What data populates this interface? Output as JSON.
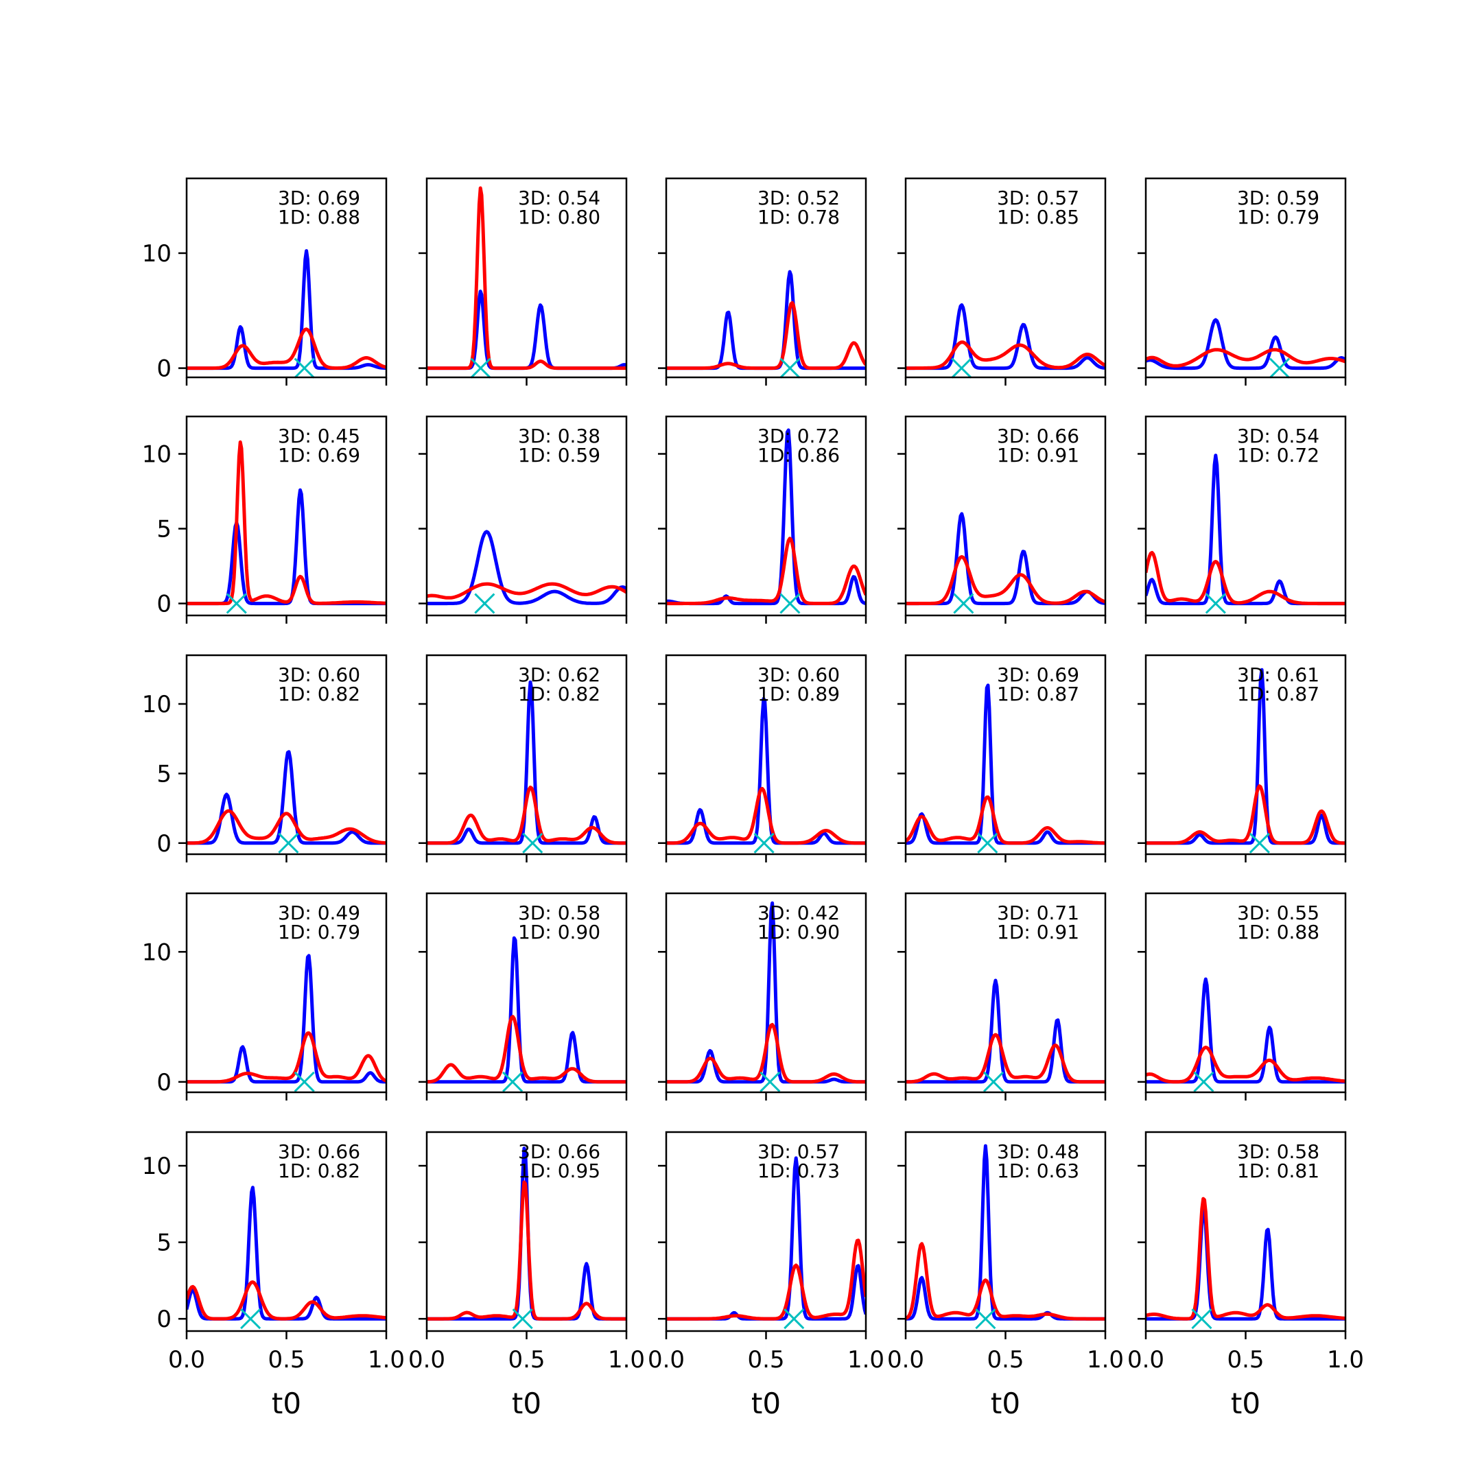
{
  "chart_data": {
    "type": "line",
    "layout": {
      "rows": 5,
      "cols": 5
    },
    "xlabel": "t0",
    "xlim": [
      0,
      1
    ],
    "xticks": [
      0.0,
      0.5,
      1.0
    ],
    "xtick_labels": [
      "0.0",
      "0.5",
      "1.0"
    ],
    "row_ylim": [
      [
        -0.8,
        16.5
      ],
      [
        -0.8,
        12.5
      ],
      [
        -0.8,
        13.5
      ],
      [
        -0.8,
        14.5
      ],
      [
        -0.8,
        12.2
      ]
    ],
    "row_yticks": [
      [
        0,
        10
      ],
      [
        0,
        5,
        10
      ],
      [
        0,
        5,
        10
      ],
      [
        0,
        10
      ],
      [
        0,
        5,
        10
      ]
    ],
    "colors": {
      "series_3d": "#0000ff",
      "series_1d": "#ff0000",
      "marker": "#00bfbf"
    },
    "series_names": [
      "3D",
      "1D"
    ],
    "panels": [
      {
        "ann": [
          "3D: 0.69",
          "1D: 0.88"
        ],
        "marker_x": 0.59,
        "blue": [
          [
            0.27,
            3.6,
            0.018
          ],
          [
            0.6,
            10.2,
            0.016
          ],
          [
            0.91,
            0.3,
            0.03
          ]
        ],
        "red": [
          [
            0.28,
            1.9,
            0.04
          ],
          [
            0.6,
            3.3,
            0.04
          ],
          [
            0.9,
            0.9,
            0.045
          ],
          [
            0.45,
            0.5,
            0.08
          ]
        ]
      },
      {
        "ann": [
          "3D: 0.54",
          "1D: 0.80"
        ],
        "marker_x": 0.27,
        "blue": [
          [
            0.27,
            6.7,
            0.016
          ],
          [
            0.57,
            5.5,
            0.02
          ],
          [
            0.99,
            0.3,
            0.02
          ]
        ],
        "red": [
          [
            0.27,
            15.7,
            0.017
          ],
          [
            0.57,
            0.6,
            0.025
          ]
        ]
      },
      {
        "ann": [
          "3D: 0.52",
          "1D: 0.78"
        ],
        "marker_x": 0.62,
        "blue": [
          [
            0.31,
            4.9,
            0.018
          ],
          [
            0.62,
            8.4,
            0.018
          ]
        ],
        "red": [
          [
            0.31,
            0.4,
            0.04
          ],
          [
            0.63,
            5.7,
            0.025
          ],
          [
            0.94,
            2.2,
            0.03
          ]
        ]
      },
      {
        "ann": [
          "3D: 0.57",
          "1D: 0.85"
        ],
        "marker_x": 0.28,
        "blue": [
          [
            0.28,
            5.5,
            0.025
          ],
          [
            0.59,
            3.8,
            0.025
          ],
          [
            0.91,
            0.9,
            0.03
          ]
        ],
        "red": [
          [
            0.28,
            2.0,
            0.045
          ],
          [
            0.58,
            1.6,
            0.06
          ],
          [
            0.91,
            1.2,
            0.05
          ],
          [
            0.45,
            0.7,
            0.12
          ]
        ]
      },
      {
        "ann": [
          "3D: 0.59",
          "1D: 0.79"
        ],
        "marker_x": 0.67,
        "blue": [
          [
            0.35,
            4.2,
            0.03
          ],
          [
            0.65,
            2.7,
            0.025
          ],
          [
            0.02,
            0.7,
            0.04
          ],
          [
            0.98,
            0.9,
            0.03
          ]
        ],
        "red": [
          [
            0.35,
            1.3,
            0.08
          ],
          [
            0.65,
            1.3,
            0.07
          ],
          [
            0.03,
            0.9,
            0.05
          ],
          [
            0.93,
            0.8,
            0.08
          ],
          [
            0.5,
            0.4,
            0.2
          ]
        ]
      },
      {
        "ann": [
          "3D: 0.45",
          "1D: 0.69"
        ],
        "marker_x": 0.25,
        "blue": [
          [
            0.25,
            5.4,
            0.02
          ],
          [
            0.57,
            7.6,
            0.018
          ]
        ],
        "red": [
          [
            0.27,
            10.8,
            0.017
          ],
          [
            0.57,
            1.8,
            0.025
          ],
          [
            0.4,
            0.5,
            0.05
          ],
          [
            0.85,
            0.1,
            0.08
          ]
        ]
      },
      {
        "ann": [
          "3D: 0.38",
          "1D: 0.59"
        ],
        "marker_x": 0.29,
        "blue": [
          [
            0.3,
            4.8,
            0.045
          ],
          [
            0.64,
            0.8,
            0.06
          ],
          [
            0.98,
            1.1,
            0.04
          ]
        ],
        "red": [
          [
            0.3,
            1.3,
            0.1
          ],
          [
            0.63,
            1.3,
            0.1
          ],
          [
            0.93,
            1.1,
            0.08
          ],
          [
            0.02,
            0.5,
            0.06
          ]
        ]
      },
      {
        "ann": [
          "3D: 0.72",
          "1D: 0.86"
        ],
        "marker_x": 0.62,
        "blue": [
          [
            0.61,
            11.7,
            0.018
          ],
          [
            0.3,
            0.5,
            0.015
          ],
          [
            0.94,
            1.8,
            0.018
          ],
          [
            0.01,
            0.15,
            0.03
          ]
        ],
        "red": [
          [
            0.62,
            4.3,
            0.028
          ],
          [
            0.94,
            2.5,
            0.035
          ],
          [
            0.3,
            0.3,
            0.05
          ],
          [
            0.45,
            0.2,
            0.1
          ]
        ]
      },
      {
        "ann": [
          "3D: 0.66",
          "1D: 0.91"
        ],
        "marker_x": 0.29,
        "blue": [
          [
            0.28,
            6.0,
            0.022
          ],
          [
            0.59,
            3.5,
            0.022
          ],
          [
            0.91,
            0.8,
            0.03
          ]
        ],
        "red": [
          [
            0.28,
            3.0,
            0.04
          ],
          [
            0.58,
            1.7,
            0.05
          ],
          [
            0.9,
            0.8,
            0.05
          ],
          [
            0.45,
            0.5,
            0.1
          ]
        ]
      },
      {
        "ann": [
          "3D: 0.54",
          "1D: 0.72"
        ],
        "marker_x": 0.35,
        "blue": [
          [
            0.35,
            9.9,
            0.017
          ],
          [
            0.03,
            1.6,
            0.02
          ],
          [
            0.67,
            1.5,
            0.02
          ]
        ],
        "red": [
          [
            0.35,
            2.8,
            0.035
          ],
          [
            0.03,
            3.4,
            0.03
          ],
          [
            0.62,
            0.8,
            0.06
          ],
          [
            0.18,
            0.3,
            0.05
          ]
        ]
      },
      {
        "ann": [
          "3D: 0.60",
          "1D: 0.82"
        ],
        "marker_x": 0.51,
        "blue": [
          [
            0.2,
            3.5,
            0.025
          ],
          [
            0.51,
            6.6,
            0.022
          ],
          [
            0.83,
            0.8,
            0.03
          ]
        ],
        "red": [
          [
            0.21,
            2.3,
            0.05
          ],
          [
            0.5,
            2.1,
            0.045
          ],
          [
            0.82,
            1.0,
            0.06
          ],
          [
            0.36,
            0.3,
            0.06
          ],
          [
            0.67,
            0.3,
            0.06
          ]
        ]
      },
      {
        "ann": [
          "3D: 0.62",
          "1D: 0.82"
        ],
        "marker_x": 0.53,
        "blue": [
          [
            0.52,
            11.6,
            0.016
          ],
          [
            0.21,
            1.0,
            0.02
          ],
          [
            0.84,
            1.9,
            0.018
          ]
        ],
        "red": [
          [
            0.52,
            4.0,
            0.028
          ],
          [
            0.22,
            2.0,
            0.035
          ],
          [
            0.83,
            1.1,
            0.04
          ],
          [
            0.37,
            0.3,
            0.05
          ],
          [
            0.68,
            0.3,
            0.06
          ]
        ]
      },
      {
        "ann": [
          "3D: 0.60",
          "1D: 0.89"
        ],
        "marker_x": 0.49,
        "blue": [
          [
            0.49,
            10.5,
            0.016
          ],
          [
            0.17,
            2.4,
            0.02
          ],
          [
            0.79,
            0.7,
            0.02
          ]
        ],
        "red": [
          [
            0.48,
            3.9,
            0.03
          ],
          [
            0.17,
            1.4,
            0.04
          ],
          [
            0.8,
            0.9,
            0.045
          ],
          [
            0.33,
            0.4,
            0.06
          ]
        ]
      },
      {
        "ann": [
          "3D: 0.69",
          "1D: 0.87"
        ],
        "marker_x": 0.41,
        "blue": [
          [
            0.41,
            11.5,
            0.015
          ],
          [
            0.08,
            2.1,
            0.02
          ],
          [
            0.71,
            0.8,
            0.02
          ]
        ],
        "red": [
          [
            0.41,
            3.3,
            0.03
          ],
          [
            0.08,
            1.9,
            0.035
          ],
          [
            0.71,
            1.1,
            0.04
          ],
          [
            0.26,
            0.4,
            0.06
          ],
          [
            0.87,
            0.1,
            0.05
          ]
        ]
      },
      {
        "ann": [
          "3D: 0.61",
          "1D: 0.87"
        ],
        "marker_x": 0.57,
        "blue": [
          [
            0.58,
            12.5,
            0.015
          ],
          [
            0.27,
            0.6,
            0.02
          ],
          [
            0.88,
            2.0,
            0.018
          ]
        ],
        "red": [
          [
            0.57,
            4.1,
            0.028
          ],
          [
            0.27,
            0.8,
            0.04
          ],
          [
            0.88,
            2.3,
            0.03
          ],
          [
            0.43,
            0.2,
            0.05
          ]
        ]
      },
      {
        "ann": [
          "3D: 0.49",
          "1D: 0.79"
        ],
        "marker_x": 0.59,
        "blue": [
          [
            0.61,
            9.8,
            0.018
          ],
          [
            0.28,
            2.7,
            0.018
          ],
          [
            0.92,
            0.7,
            0.02
          ]
        ],
        "red": [
          [
            0.61,
            3.7,
            0.035
          ],
          [
            0.91,
            2.0,
            0.035
          ],
          [
            0.3,
            0.6,
            0.05
          ],
          [
            0.45,
            0.3,
            0.08
          ],
          [
            0.75,
            0.4,
            0.06
          ]
        ]
      },
      {
        "ann": [
          "3D: 0.58",
          "1D: 0.90"
        ],
        "marker_x": 0.43,
        "blue": [
          [
            0.44,
            11.2,
            0.016
          ],
          [
            0.73,
            3.8,
            0.018
          ]
        ],
        "red": [
          [
            0.43,
            5.0,
            0.03
          ],
          [
            0.12,
            1.3,
            0.035
          ],
          [
            0.73,
            1.0,
            0.04
          ],
          [
            0.27,
            0.4,
            0.06
          ],
          [
            0.58,
            0.3,
            0.06
          ]
        ]
      },
      {
        "ann": [
          "3D: 0.42",
          "1D: 0.90"
        ],
        "marker_x": 0.52,
        "blue": [
          [
            0.53,
            13.8,
            0.015
          ],
          [
            0.22,
            2.4,
            0.02
          ],
          [
            0.84,
            0.2,
            0.02
          ]
        ],
        "red": [
          [
            0.53,
            4.4,
            0.03
          ],
          [
            0.22,
            1.8,
            0.035
          ],
          [
            0.84,
            0.6,
            0.04
          ],
          [
            0.37,
            0.3,
            0.06
          ]
        ]
      },
      {
        "ann": [
          "3D: 0.71",
          "1D: 0.91"
        ],
        "marker_x": 0.44,
        "blue": [
          [
            0.45,
            7.8,
            0.018
          ],
          [
            0.76,
            4.8,
            0.018
          ]
        ],
        "red": [
          [
            0.45,
            3.6,
            0.035
          ],
          [
            0.75,
            2.8,
            0.035
          ],
          [
            0.14,
            0.6,
            0.04
          ],
          [
            0.29,
            0.3,
            0.06
          ],
          [
            0.6,
            0.4,
            0.06
          ]
        ]
      },
      {
        "ann": [
          "3D: 0.55",
          "1D: 0.88"
        ],
        "marker_x": 0.29,
        "blue": [
          [
            0.3,
            7.9,
            0.018
          ],
          [
            0.62,
            4.2,
            0.018
          ]
        ],
        "red": [
          [
            0.3,
            2.6,
            0.04
          ],
          [
            0.62,
            1.6,
            0.045
          ],
          [
            0.02,
            0.6,
            0.04
          ],
          [
            0.46,
            0.4,
            0.08
          ],
          [
            0.85,
            0.3,
            0.08
          ]
        ]
      },
      {
        "ann": [
          "3D: 0.66",
          "1D: 0.82"
        ],
        "marker_x": 0.32,
        "blue": [
          [
            0.33,
            8.6,
            0.018
          ],
          [
            0.03,
            1.9,
            0.02
          ],
          [
            0.65,
            1.4,
            0.02
          ]
        ],
        "red": [
          [
            0.33,
            2.4,
            0.04
          ],
          [
            0.03,
            2.1,
            0.03
          ],
          [
            0.63,
            1.1,
            0.04
          ],
          [
            0.88,
            0.2,
            0.08
          ]
        ]
      },
      {
        "ann": [
          "3D: 0.66",
          "1D: 0.95"
        ],
        "marker_x": 0.48,
        "blue": [
          [
            0.49,
            11.3,
            0.015
          ],
          [
            0.8,
            3.6,
            0.017
          ]
        ],
        "red": [
          [
            0.49,
            9.0,
            0.018
          ],
          [
            0.2,
            0.4,
            0.03
          ],
          [
            0.8,
            1.0,
            0.03
          ],
          [
            0.35,
            0.2,
            0.06
          ]
        ]
      },
      {
        "ann": [
          "3D: 0.57",
          "1D: 0.73"
        ],
        "marker_x": 0.64,
        "blue": [
          [
            0.65,
            10.5,
            0.017
          ],
          [
            0.34,
            0.4,
            0.015
          ],
          [
            0.96,
            3.5,
            0.018
          ]
        ],
        "red": [
          [
            0.65,
            3.5,
            0.03
          ],
          [
            0.96,
            5.1,
            0.025
          ],
          [
            0.35,
            0.2,
            0.05
          ],
          [
            0.85,
            0.3,
            0.06
          ]
        ]
      },
      {
        "ann": [
          "3D: 0.48",
          "1D: 0.63"
        ],
        "marker_x": 0.4,
        "blue": [
          [
            0.4,
            11.3,
            0.015
          ],
          [
            0.08,
            2.7,
            0.018
          ],
          [
            0.71,
            0.4,
            0.02
          ]
        ],
        "red": [
          [
            0.4,
            2.5,
            0.03
          ],
          [
            0.08,
            4.9,
            0.025
          ],
          [
            0.71,
            0.3,
            0.05
          ],
          [
            0.25,
            0.4,
            0.06
          ],
          [
            0.55,
            0.2,
            0.06
          ]
        ]
      },
      {
        "ann": [
          "3D: 0.58",
          "1D: 0.81"
        ],
        "marker_x": 0.28,
        "blue": [
          [
            0.29,
            7.2,
            0.017
          ],
          [
            0.61,
            5.9,
            0.017
          ]
        ],
        "red": [
          [
            0.29,
            7.9,
            0.02
          ],
          [
            0.61,
            0.9,
            0.035
          ],
          [
            0.04,
            0.3,
            0.05
          ],
          [
            0.45,
            0.4,
            0.06
          ],
          [
            0.85,
            0.2,
            0.08
          ]
        ]
      }
    ]
  }
}
